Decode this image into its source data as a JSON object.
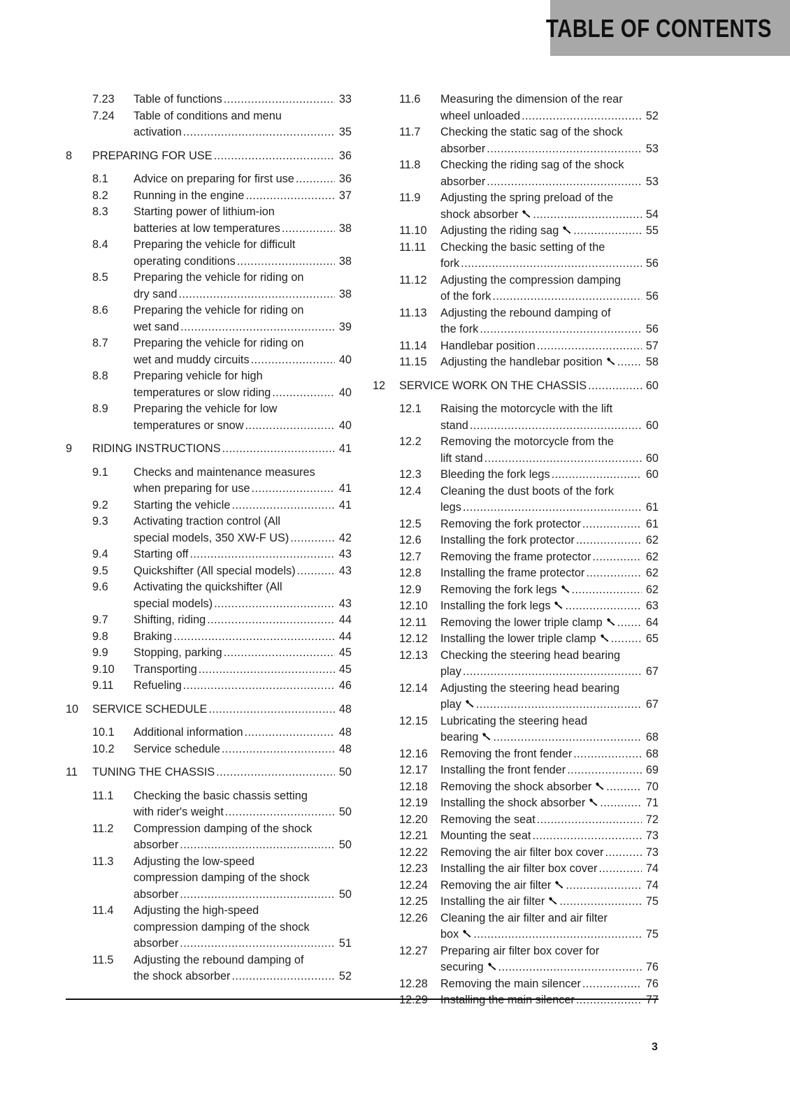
{
  "header": {
    "title": "TABLE OF CONTENTS",
    "background": "#a8a8a8"
  },
  "footer": {
    "page_number": "3"
  },
  "columns": {
    "left": [
      {
        "num": "7.23",
        "lines": [
          "Table of functions"
        ],
        "page": "33"
      },
      {
        "num": "7.24",
        "lines": [
          "Table of conditions and menu",
          "activation"
        ],
        "page": "35"
      },
      {
        "num": "8",
        "chapter": true,
        "lines": [
          "PREPARING FOR USE"
        ],
        "page": "36"
      },
      {
        "num": "8.1",
        "lines": [
          "Advice on preparing for first use"
        ],
        "page": "36"
      },
      {
        "num": "8.2",
        "lines": [
          "Running in the engine"
        ],
        "page": "37"
      },
      {
        "num": "8.3",
        "lines": [
          "Starting power of lithium-ion",
          "batteries at low temperatures"
        ],
        "page": "38"
      },
      {
        "num": "8.4",
        "lines": [
          "Preparing the vehicle for difficult",
          "operating conditions"
        ],
        "page": "38"
      },
      {
        "num": "8.5",
        "lines": [
          "Preparing the vehicle for riding on",
          "dry sand"
        ],
        "page": "38"
      },
      {
        "num": "8.6",
        "lines": [
          "Preparing the vehicle for riding on",
          "wet sand"
        ],
        "page": "39"
      },
      {
        "num": "8.7",
        "lines": [
          "Preparing the vehicle for riding on",
          "wet and muddy circuits"
        ],
        "page": "40"
      },
      {
        "num": "8.8",
        "lines": [
          "Preparing vehicle for high",
          "temperatures or slow riding"
        ],
        "page": "40"
      },
      {
        "num": "8.9",
        "lines": [
          "Preparing the vehicle for low",
          "temperatures or snow"
        ],
        "page": "40"
      },
      {
        "num": "9",
        "chapter": true,
        "lines": [
          "RIDING INSTRUCTIONS"
        ],
        "page": "41"
      },
      {
        "num": "9.1",
        "lines": [
          "Checks and maintenance measures",
          "when preparing for use"
        ],
        "page": "41"
      },
      {
        "num": "9.2",
        "lines": [
          "Starting the vehicle"
        ],
        "page": "41"
      },
      {
        "num": "9.3",
        "lines": [
          "Activating traction control (All",
          "special models, 350 XW-F US)"
        ],
        "page": "42"
      },
      {
        "num": "9.4",
        "lines": [
          "Starting off"
        ],
        "page": "43"
      },
      {
        "num": "9.5",
        "lines": [
          "Quickshifter (All special models)"
        ],
        "page": "43"
      },
      {
        "num": "9.6",
        "lines": [
          "Activating the quickshifter (All",
          "special models)"
        ],
        "page": "43"
      },
      {
        "num": "9.7",
        "lines": [
          "Shifting, riding"
        ],
        "page": "44"
      },
      {
        "num": "9.8",
        "lines": [
          "Braking"
        ],
        "page": "44"
      },
      {
        "num": "9.9",
        "lines": [
          "Stopping, parking"
        ],
        "page": "45"
      },
      {
        "num": "9.10",
        "lines": [
          "Transporting"
        ],
        "page": "45"
      },
      {
        "num": "9.11",
        "lines": [
          "Refueling"
        ],
        "page": "46"
      },
      {
        "num": "10",
        "chapter": true,
        "lines": [
          "SERVICE SCHEDULE"
        ],
        "page": "48"
      },
      {
        "num": "10.1",
        "lines": [
          "Additional information"
        ],
        "page": "48"
      },
      {
        "num": "10.2",
        "lines": [
          "Service schedule"
        ],
        "page": "48"
      },
      {
        "num": "11",
        "chapter": true,
        "lines": [
          "TUNING THE CHASSIS"
        ],
        "page": "50"
      },
      {
        "num": "11.1",
        "lines": [
          "Checking the basic chassis setting",
          "with rider's weight"
        ],
        "page": "50"
      },
      {
        "num": "11.2",
        "lines": [
          "Compression damping of the shock",
          "absorber"
        ],
        "page": "50"
      },
      {
        "num": "11.3",
        "lines": [
          "Adjusting the low-speed",
          "compression damping of the shock",
          "absorber"
        ],
        "page": "50"
      },
      {
        "num": "11.4",
        "lines": [
          "Adjusting the high-speed",
          "compression damping of the shock",
          "absorber"
        ],
        "page": "51"
      },
      {
        "num": "11.5",
        "lines": [
          "Adjusting the rebound damping of",
          "the shock absorber"
        ],
        "page": "52"
      }
    ],
    "right": [
      {
        "num": "11.6",
        "lines": [
          "Measuring the dimension of the rear",
          "wheel unloaded"
        ],
        "page": "52"
      },
      {
        "num": "11.7",
        "lines": [
          "Checking the static sag of the shock",
          "absorber"
        ],
        "page": "53"
      },
      {
        "num": "11.8",
        "lines": [
          "Checking the riding sag of the shock",
          "absorber"
        ],
        "page": "53"
      },
      {
        "num": "11.9",
        "lines": [
          "Adjusting the spring preload of the",
          "shock absorber"
        ],
        "tool": true,
        "page": "54"
      },
      {
        "num": "11.10",
        "lines": [
          "Adjusting the riding sag"
        ],
        "tool": true,
        "page": "55"
      },
      {
        "num": "11.11",
        "lines": [
          "Checking the basic setting of the",
          "fork"
        ],
        "page": "56"
      },
      {
        "num": "11.12",
        "lines": [
          "Adjusting the compression damping",
          "of the fork"
        ],
        "page": "56"
      },
      {
        "num": "11.13",
        "lines": [
          "Adjusting the rebound damping of",
          "the fork"
        ],
        "page": "56"
      },
      {
        "num": "11.14",
        "lines": [
          "Handlebar position"
        ],
        "page": "57"
      },
      {
        "num": "11.15",
        "lines": [
          "Adjusting the handlebar position"
        ],
        "tool": true,
        "page": "58"
      },
      {
        "num": "12",
        "chapter": true,
        "lines": [
          "SERVICE WORK ON THE CHASSIS"
        ],
        "page": "60"
      },
      {
        "num": "12.1",
        "lines": [
          "Raising the motorcycle with the lift",
          "stand"
        ],
        "page": "60"
      },
      {
        "num": "12.2",
        "lines": [
          "Removing the motorcycle from the",
          "lift stand"
        ],
        "page": "60"
      },
      {
        "num": "12.3",
        "lines": [
          "Bleeding the fork legs"
        ],
        "page": "60"
      },
      {
        "num": "12.4",
        "lines": [
          "Cleaning the dust boots of the fork",
          "legs"
        ],
        "page": "61"
      },
      {
        "num": "12.5",
        "lines": [
          "Removing the fork protector"
        ],
        "page": "61"
      },
      {
        "num": "12.6",
        "lines": [
          "Installing the fork protector"
        ],
        "page": "62"
      },
      {
        "num": "12.7",
        "lines": [
          "Removing the frame protector"
        ],
        "page": "62"
      },
      {
        "num": "12.8",
        "lines": [
          "Installing the frame protector"
        ],
        "page": "62"
      },
      {
        "num": "12.9",
        "lines": [
          "Removing the fork legs"
        ],
        "tool": true,
        "page": "62"
      },
      {
        "num": "12.10",
        "lines": [
          "Installing the fork legs"
        ],
        "tool": true,
        "page": "63"
      },
      {
        "num": "12.11",
        "lines": [
          "Removing the lower triple clamp"
        ],
        "tool": true,
        "page": "64"
      },
      {
        "num": "12.12",
        "lines": [
          "Installing the lower triple clamp"
        ],
        "tool": true,
        "page": "65"
      },
      {
        "num": "12.13",
        "lines": [
          "Checking the steering head bearing",
          "play"
        ],
        "page": "67"
      },
      {
        "num": "12.14",
        "lines": [
          "Adjusting the steering head bearing",
          "play"
        ],
        "tool": true,
        "page": "67"
      },
      {
        "num": "12.15",
        "lines": [
          "Lubricating the steering head",
          "bearing"
        ],
        "tool": true,
        "page": "68"
      },
      {
        "num": "12.16",
        "lines": [
          "Removing the front fender"
        ],
        "page": "68"
      },
      {
        "num": "12.17",
        "lines": [
          "Installing the front fender"
        ],
        "page": "69"
      },
      {
        "num": "12.18",
        "lines": [
          "Removing the shock absorber"
        ],
        "tool": true,
        "page": "70"
      },
      {
        "num": "12.19",
        "lines": [
          "Installing the shock absorber"
        ],
        "tool": true,
        "page": "71"
      },
      {
        "num": "12.20",
        "lines": [
          "Removing the seat"
        ],
        "page": "72"
      },
      {
        "num": "12.21",
        "lines": [
          "Mounting the seat"
        ],
        "page": "73"
      },
      {
        "num": "12.22",
        "lines": [
          "Removing the air filter box cover"
        ],
        "page": "73"
      },
      {
        "num": "12.23",
        "lines": [
          "Installing the air filter box cover"
        ],
        "page": "74"
      },
      {
        "num": "12.24",
        "lines": [
          "Removing the air filter"
        ],
        "tool": true,
        "page": "74"
      },
      {
        "num": "12.25",
        "lines": [
          "Installing the air filter"
        ],
        "tool": true,
        "page": "75"
      },
      {
        "num": "12.26",
        "lines": [
          "Cleaning the air filter and air filter",
          "box"
        ],
        "tool": true,
        "page": "75"
      },
      {
        "num": "12.27",
        "lines": [
          "Preparing air filter box cover for",
          "securing"
        ],
        "tool": true,
        "page": "76"
      },
      {
        "num": "12.28",
        "lines": [
          "Removing the main silencer"
        ],
        "page": "76"
      },
      {
        "num": "12.29",
        "lines": [
          "Installing the main silencer"
        ],
        "page": "77"
      }
    ]
  }
}
